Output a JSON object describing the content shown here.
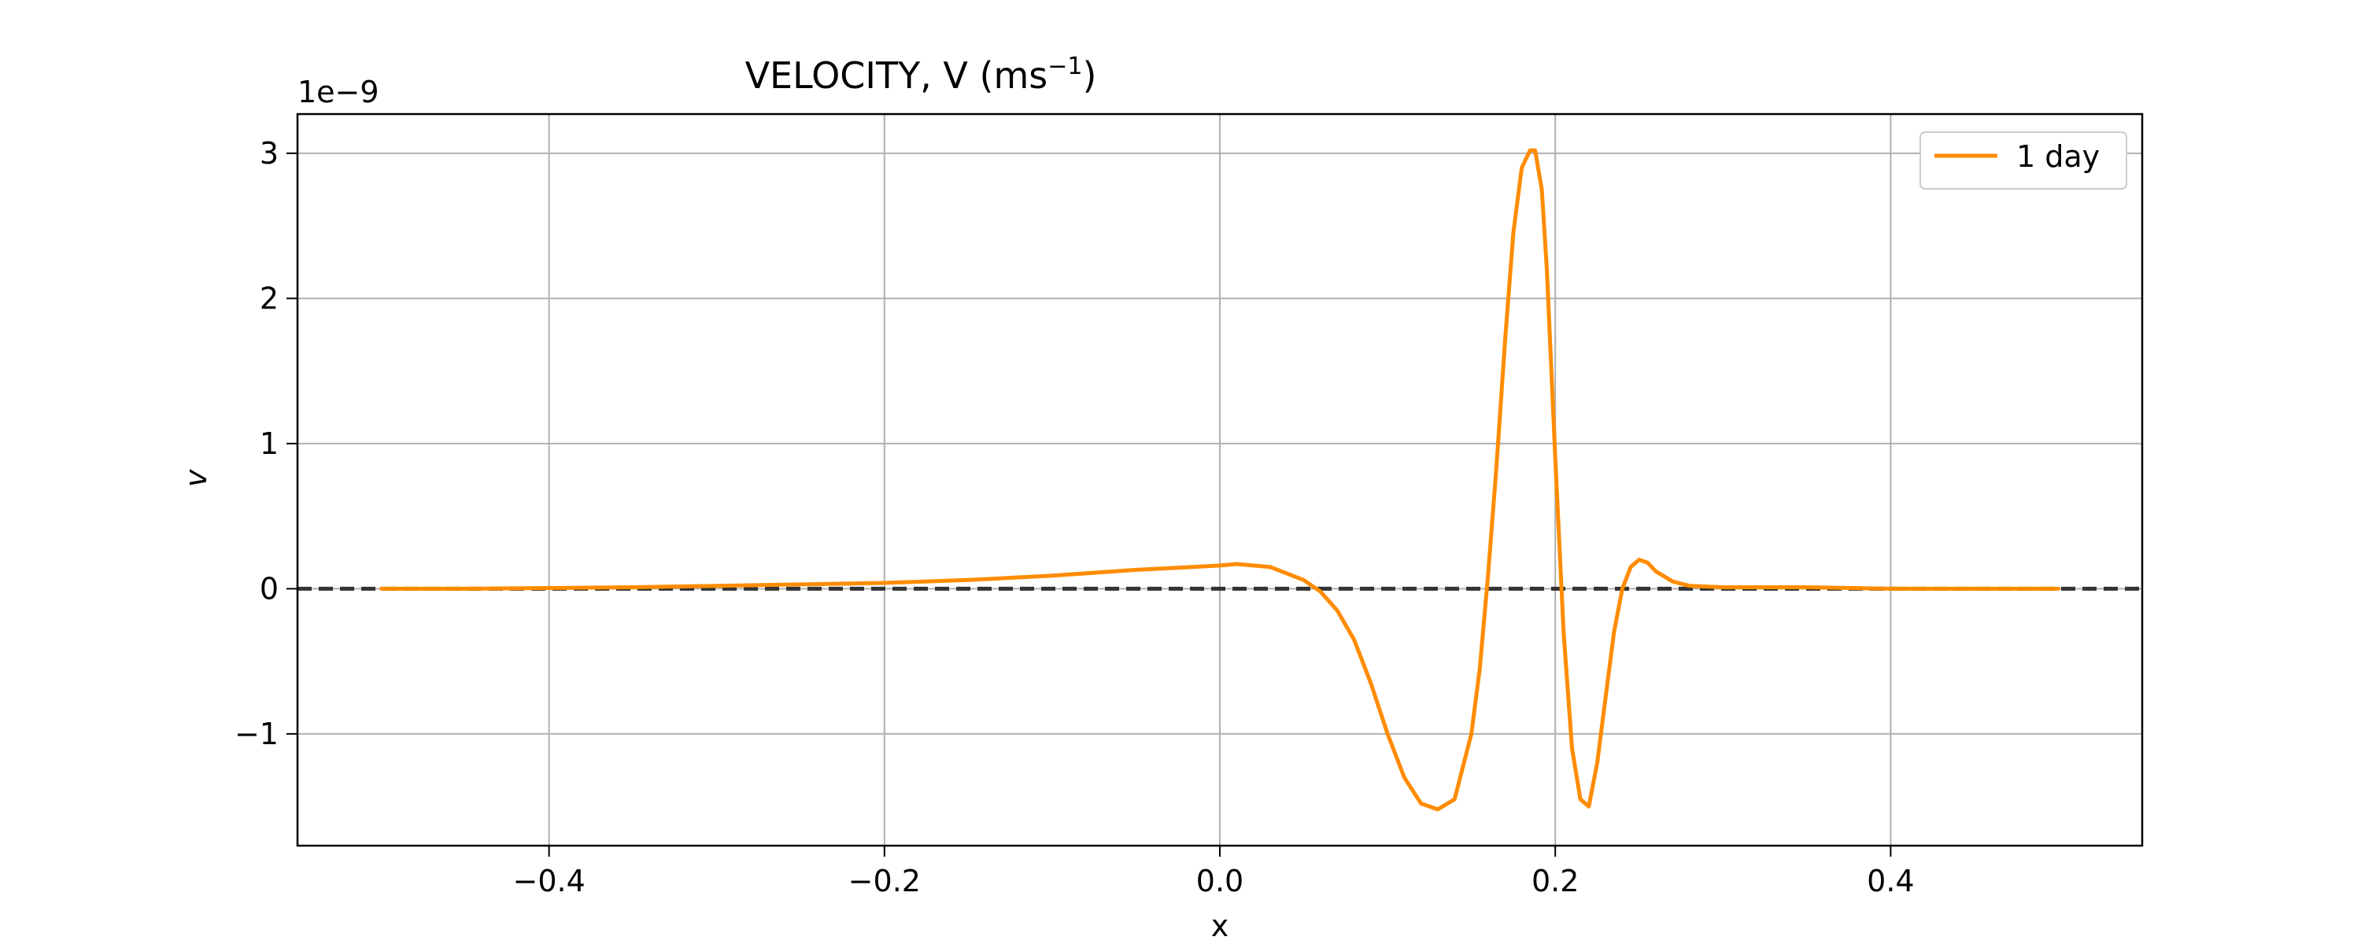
{
  "chart_data": {
    "type": "line",
    "title": "VELOCITY, V (ms",
    "title_superscript": "−1",
    "title_suffix": ")",
    "xlabel": "x",
    "ylabel": "v",
    "y_offset_label": "1e−9",
    "xlim": [
      -0.55,
      0.55
    ],
    "ylim": [
      -1.77,
      3.27
    ],
    "x_ticks": [
      -0.4,
      -0.2,
      0.0,
      0.2,
      0.4
    ],
    "x_tick_labels": [
      "−0.4",
      "−0.2",
      "0.0",
      "0.2",
      "0.4"
    ],
    "y_ticks": [
      -1,
      0,
      1,
      2,
      3
    ],
    "y_tick_labels": [
      "−1",
      "0",
      "1",
      "2",
      "3"
    ],
    "grid": true,
    "legend_position": "top-right",
    "reference_line": {
      "y": 0,
      "style": "dashed",
      "color": "#333333"
    },
    "series": [
      {
        "name": "1 day",
        "color": "#ff8c00",
        "x": [
          -0.5,
          -0.45,
          -0.4,
          -0.35,
          -0.3,
          -0.25,
          -0.2,
          -0.15,
          -0.1,
          -0.05,
          0.0,
          0.01,
          0.03,
          0.05,
          0.06,
          0.07,
          0.08,
          0.09,
          0.1,
          0.11,
          0.12,
          0.13,
          0.14,
          0.15,
          0.155,
          0.16,
          0.165,
          0.17,
          0.175,
          0.18,
          0.185,
          0.188,
          0.192,
          0.195,
          0.2,
          0.205,
          0.21,
          0.215,
          0.22,
          0.225,
          0.23,
          0.235,
          0.24,
          0.245,
          0.25,
          0.255,
          0.26,
          0.27,
          0.28,
          0.3,
          0.35,
          0.4,
          0.45,
          0.5
        ],
        "y": [
          0.0,
          0.0,
          0.005,
          0.01,
          0.02,
          0.03,
          0.04,
          0.06,
          0.09,
          0.13,
          0.16,
          0.17,
          0.15,
          0.06,
          -0.02,
          -0.15,
          -0.35,
          -0.65,
          -1.0,
          -1.3,
          -1.48,
          -1.52,
          -1.45,
          -1.0,
          -0.55,
          0.1,
          0.85,
          1.7,
          2.45,
          2.9,
          3.02,
          3.02,
          2.75,
          2.2,
          0.9,
          -0.3,
          -1.1,
          -1.45,
          -1.5,
          -1.2,
          -0.75,
          -0.3,
          0.0,
          0.15,
          0.2,
          0.18,
          0.12,
          0.05,
          0.02,
          0.01,
          0.01,
          0.0,
          0.0,
          0.0
        ]
      }
    ]
  }
}
